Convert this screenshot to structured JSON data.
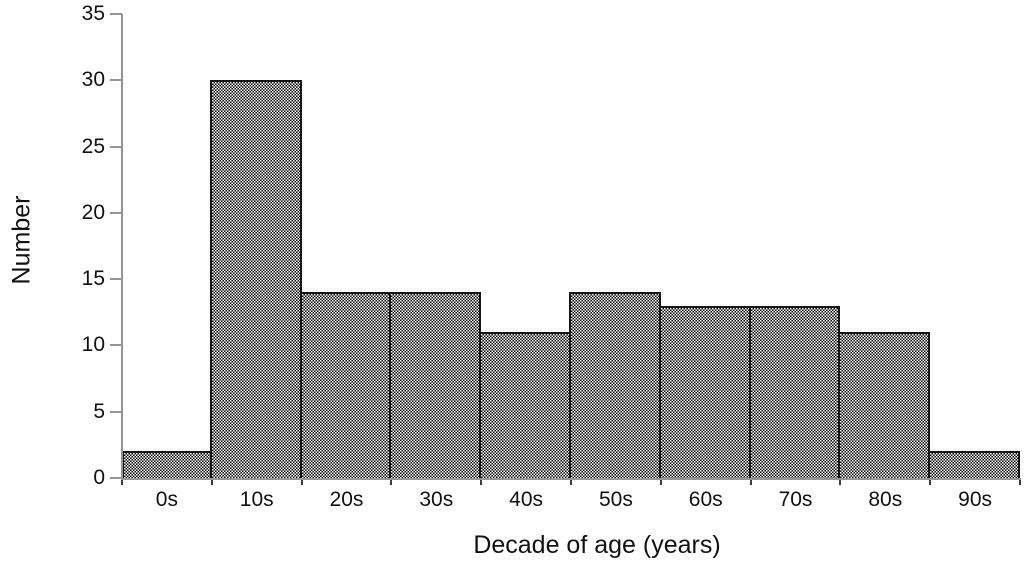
{
  "chart_data": {
    "type": "bar",
    "subtype": "histogram",
    "title": "",
    "xlabel": "Decade of age (years)",
    "ylabel": "Number",
    "categories": [
      "0s",
      "10s",
      "20s",
      "30s",
      "40s",
      "50s",
      "60s",
      "70s",
      "80s",
      "90s"
    ],
    "values": [
      2,
      30,
      14,
      14,
      11,
      14,
      13,
      13,
      11,
      2
    ],
    "ylim": [
      0,
      35
    ],
    "yticks": [
      0,
      5,
      10,
      15,
      20,
      25,
      30,
      35
    ],
    "grid": false,
    "legend": null,
    "bar_gap": 0,
    "style": {
      "bar_fill_pattern": "checkerboard-dither",
      "bar_pattern_colors": [
        "#0a0a0a",
        "#ffffff"
      ],
      "bar_border_color": "#161616",
      "axis_color": "#959595",
      "tick_color": "#3a3a3a",
      "text_color": "#111111",
      "background_color": "#ffffff"
    }
  }
}
